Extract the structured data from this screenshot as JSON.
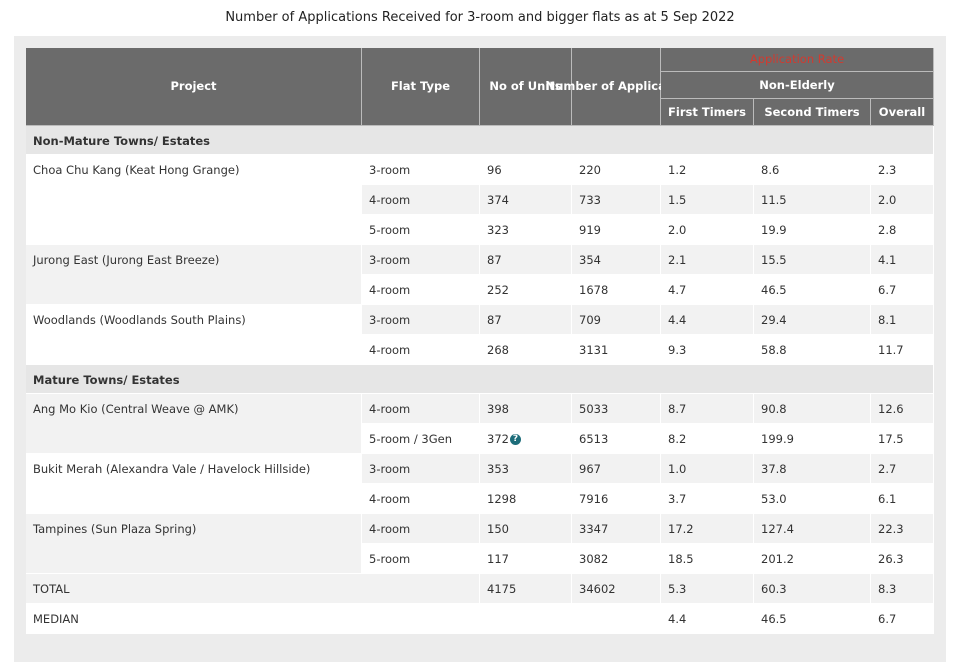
{
  "title": "Number of Applications Received for 3-room and bigger flats as at 5 Sep 2022",
  "header": {
    "project": "Project",
    "flat_type": "Flat Type",
    "units": "No of Units",
    "applicants": "Number of Applicants",
    "application_rate": "Application Rate",
    "non_elderly": "Non-Elderly",
    "first_timers": "First Timers",
    "second_timers": "Second Timers",
    "overall": "Overall"
  },
  "sections": [
    {
      "name": "Non-Mature Towns/ Estates",
      "groups": [
        {
          "project": "Choa Chu Kang (Keat Hong Grange)",
          "rows": [
            [
              "3-room",
              "96",
              "220",
              "1.2",
              "8.6",
              "2.3"
            ],
            [
              "4-room",
              "374",
              "733",
              "1.5",
              "11.5",
              "2.0"
            ],
            [
              "5-room",
              "323",
              "919",
              "2.0",
              "19.9",
              "2.8"
            ]
          ]
        },
        {
          "project": "Jurong East (Jurong East Breeze)",
          "rows": [
            [
              "3-room",
              "87",
              "354",
              "2.1",
              "15.5",
              "4.1"
            ],
            [
              "4-room",
              "252",
              "1678",
              "4.7",
              "46.5",
              "6.7"
            ]
          ]
        },
        {
          "project": "Woodlands (Woodlands South Plains)",
          "rows": [
            [
              "3-room",
              "87",
              "709",
              "4.4",
              "29.4",
              "8.1"
            ],
            [
              "4-room",
              "268",
              "3131",
              "9.3",
              "58.8",
              "11.7"
            ]
          ]
        }
      ]
    },
    {
      "name": "Mature Towns/ Estates",
      "groups": [
        {
          "project": "Ang Mo Kio (Central Weave @ AMK)",
          "rows": [
            [
              "4-room",
              "398",
              "5033",
              "8.7",
              "90.8",
              "12.6"
            ],
            [
              "5-room / 3Gen",
              "372",
              "6513",
              "8.2",
              "199.9",
              "17.5"
            ]
          ]
        },
        {
          "project": "Bukit Merah (Alexandra Vale / Havelock Hillside)",
          "rows": [
            [
              "3-room",
              "353",
              "967",
              "1.0",
              "37.8",
              "2.7"
            ],
            [
              "4-room",
              "1298",
              "7916",
              "3.7",
              "53.0",
              "6.1"
            ]
          ]
        },
        {
          "project": "Tampines (Sun Plaza Spring)",
          "rows": [
            [
              "4-room",
              "150",
              "3347",
              "17.2",
              "127.4",
              "22.3"
            ],
            [
              "5-room",
              "117",
              "3082",
              "18.5",
              "201.2",
              "26.3"
            ]
          ]
        }
      ]
    }
  ],
  "total": {
    "label": "TOTAL",
    "units": "4175",
    "applicants": "34602",
    "first_timers": "5.3",
    "second_timers": "60.3",
    "overall": "8.3"
  },
  "median": {
    "label": "MEDIAN",
    "first_timers": "4.4",
    "second_timers": "46.5",
    "overall": "6.7"
  }
}
